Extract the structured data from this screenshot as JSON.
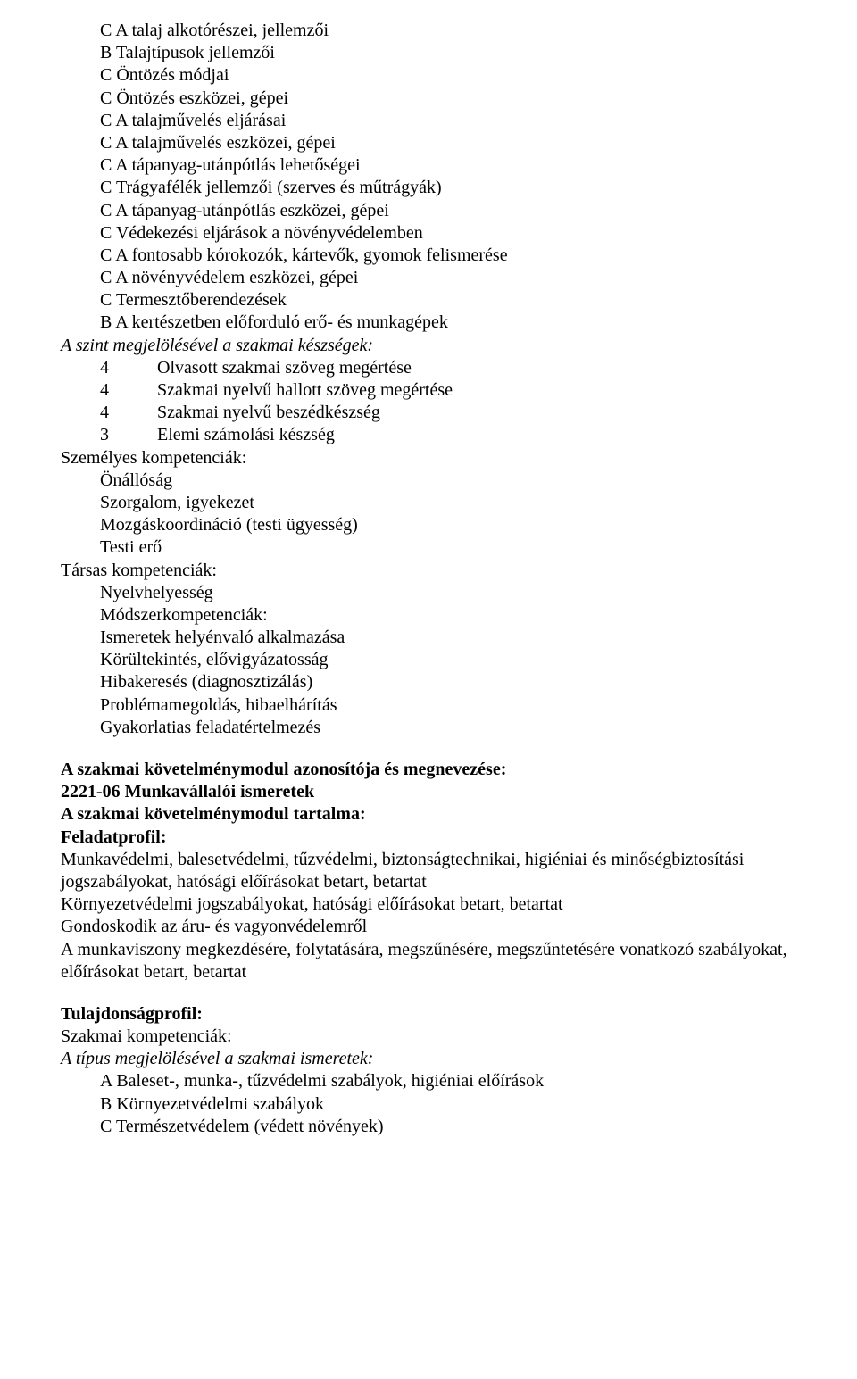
{
  "lines1": [
    "C A talaj alkotórészei, jellemzői",
    "B Talajtípusok jellemzői",
    "C Öntözés módjai",
    "C Öntözés eszközei, gépei",
    "C A talajművelés eljárásai",
    "C A talajművelés eszközei, gépei",
    "C A tápanyag-utánpótlás lehetőségei",
    "C Trágyafélék jellemzői (szerves és műtrágyák)",
    "C A tápanyag-utánpótlás eszközei, gépei",
    "C Védekezési eljárások a növényvédelemben",
    "C A fontosabb kórokozók, kártevők, gyomok felismerése",
    "C A növényvédelem eszközei, gépei",
    "C Termesztőberendezések",
    "B A kertészetben előforduló erő- és munkagépek"
  ],
  "skillsHeader": "A szint megjelölésével a szakmai készségek:",
  "skills": [
    {
      "n": "4",
      "t": "Olvasott szakmai szöveg megértése"
    },
    {
      "n": "4",
      "t": " Szakmai nyelvű hallott szöveg megértése"
    },
    {
      "n": "4",
      "t": "Szakmai nyelvű beszédkészség"
    },
    {
      "n": "3",
      "t": "Elemi számolási készség"
    }
  ],
  "personalHeader": "Személyes kompetenciák:",
  "personal": [
    "Önállóság",
    "Szorgalom, igyekezet",
    "Mozgáskoordináció (testi ügyesség)",
    "Testi erő"
  ],
  "socialHeader": "Társas kompetenciák:",
  "social": [
    "Nyelvhelyesség",
    "Módszerkompetenciák:",
    "Ismeretek helyénvaló alkalmazása",
    "Körültekintés, elővigyázatosság",
    "Hibakeresés (diagnosztizálás)",
    "Problémamegoldás, hibaelhárítás",
    "Gyakorlatias feladatértelmezés"
  ],
  "modHeader1": "A szakmai követelménymodul azonosítója és megnevezése:",
  "modHeader2": "2221-06 Munkavállalói ismeretek",
  "modHeader3": "A szakmai követelménymodul tartalma:",
  "featProfile": "Feladatprofil:",
  "featLines": [
    "Munkavédelmi, balesetvédelmi, tűzvédelmi, biztonságtechnikai, higiéniai és minőségbiztosítási jogszabályokat, hatósági előírásokat betart, betartat",
    "Környezetvédelmi jogszabályokat, hatósági előírásokat betart, betartat",
    "Gondoskodik az áru- és vagyonvédelemről",
    "A munkaviszony megkezdésére, folytatására, megszűnésére, megszűntetésére vonatkozó szabályokat, előírásokat betart, betartat"
  ],
  "propProfile": "Tulajdonságprofil:",
  "propSub": "Szakmai kompetenciák:",
  "propItalic": "A típus megjelölésével a szakmai ismeretek:",
  "propLines": [
    "A Baleset-, munka-, tűzvédelmi szabályok, higiéniai előírások",
    "B Környezetvédelmi szabályok",
    "C Természetvédelem (védett növények)"
  ]
}
